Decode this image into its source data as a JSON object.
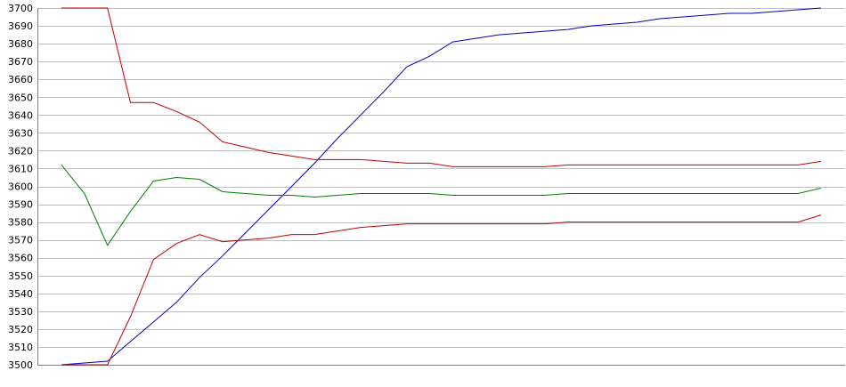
{
  "chart_data": {
    "type": "line",
    "title": "",
    "xlabel": "",
    "ylabel": "",
    "ylim": [
      3500,
      3700
    ],
    "yticks": [
      3500,
      3510,
      3520,
      3530,
      3540,
      3550,
      3560,
      3570,
      3580,
      3590,
      3600,
      3610,
      3620,
      3630,
      3640,
      3650,
      3660,
      3670,
      3680,
      3690,
      3700
    ],
    "x": [
      0,
      1,
      2,
      3,
      4,
      5,
      6,
      7,
      8,
      9,
      10,
      11,
      12,
      13,
      14,
      15,
      16,
      17,
      18,
      19,
      20,
      21,
      22,
      23,
      24,
      25,
      26,
      27,
      28,
      29,
      30,
      31,
      32,
      33
    ],
    "grid": true,
    "legend": "none",
    "series": [
      {
        "color": "#0000c0",
        "values": [
          3500,
          3501,
          3502,
          3513,
          3524,
          3535,
          3549,
          3561,
          3574,
          3587,
          3600,
          3613,
          3627,
          3640,
          3653,
          3667,
          3673,
          3681,
          3683,
          3685,
          3686,
          3687,
          3688,
          3690,
          3691,
          3692,
          3694,
          3695,
          3696,
          3697,
          3697,
          3698,
          3699,
          3700
        ]
      },
      {
        "color": "#c00000",
        "values": [
          3700,
          3700,
          3700,
          3647,
          3647,
          3642,
          3636,
          3625,
          3622,
          3619,
          3617,
          3615,
          3615,
          3615,
          3614,
          3613,
          3613,
          3611,
          3611,
          3611,
          3611,
          3611,
          3612,
          3612,
          3612,
          3612,
          3612,
          3612,
          3612,
          3612,
          3612,
          3612,
          3612,
          3614
        ]
      },
      {
        "color": "#008000",
        "values": [
          3612,
          3596,
          3567,
          3586,
          3603,
          3605,
          3604,
          3597,
          3596,
          3595,
          3595,
          3594,
          3595,
          3596,
          3596,
          3596,
          3596,
          3595,
          3595,
          3595,
          3595,
          3595,
          3596,
          3596,
          3596,
          3596,
          3596,
          3596,
          3596,
          3596,
          3596,
          3596,
          3596,
          3599
        ]
      },
      {
        "color": "#c00000",
        "values": [
          3500,
          3500,
          3500,
          3527,
          3559,
          3568,
          3573,
          3569,
          3570,
          3571,
          3573,
          3573,
          3575,
          3577,
          3578,
          3579,
          3579,
          3579,
          3579,
          3579,
          3579,
          3579,
          3580,
          3580,
          3580,
          3580,
          3580,
          3580,
          3580,
          3580,
          3580,
          3580,
          3580,
          3584
        ]
      }
    ]
  }
}
